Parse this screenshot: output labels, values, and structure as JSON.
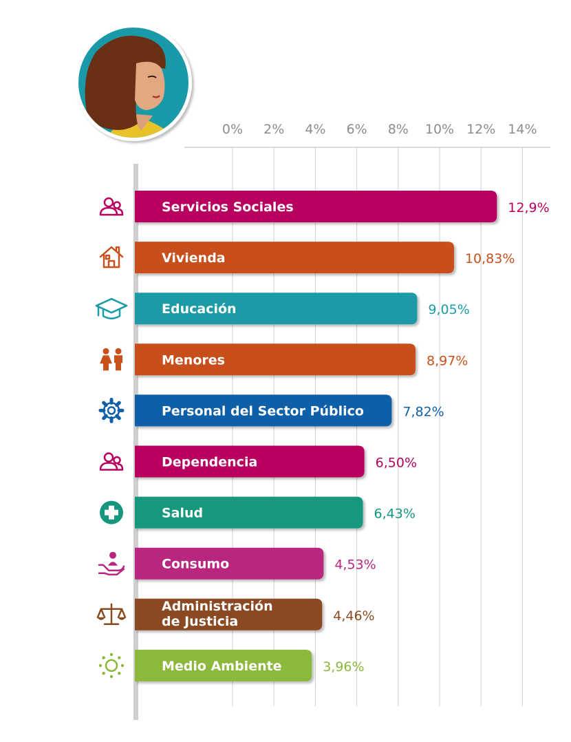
{
  "chart_data": {
    "type": "bar",
    "orientation": "horizontal",
    "xlim": [
      0,
      14
    ],
    "x_ticks": [
      0,
      2,
      4,
      6,
      8,
      10,
      12,
      14
    ],
    "x_tick_labels": [
      "0%",
      "2%",
      "4%",
      "6%",
      "8%",
      "10%",
      "12%",
      "14%"
    ],
    "grid": true,
    "categories": [
      [
        "Servicios Sociales"
      ],
      [
        "Vivienda"
      ],
      [
        "Educación"
      ],
      [
        "Menores"
      ],
      [
        "Personal del Sector Público"
      ],
      [
        "Dependencia"
      ],
      [
        "Salud"
      ],
      [
        "Consumo"
      ],
      [
        "Administración",
        "de Justicia"
      ],
      [
        "Medio Ambiente"
      ]
    ],
    "values": [
      12.9,
      10.83,
      9.05,
      8.97,
      7.82,
      6.5,
      6.43,
      4.53,
      4.46,
      3.96
    ],
    "value_labels": [
      "12,9%",
      "10,83%",
      "9,05%",
      "8,97%",
      "7,82%",
      "6,50%",
      "6,43%",
      "4,53%",
      "4,46%",
      "3,96%"
    ],
    "colors": [
      "#b8005e",
      "#c8501c",
      "#1b9ba6",
      "#c8501c",
      "#0e5ea8",
      "#b8005e",
      "#14977e",
      "#b9267f",
      "#8a4a20",
      "#8cb83a"
    ],
    "icons": [
      "people-icon",
      "house-icon",
      "graduation-cap-icon",
      "children-icon",
      "gear-icon",
      "people-icon",
      "medical-cross-icon",
      "hand-person-icon",
      "scales-icon",
      "sun-icon"
    ]
  },
  "avatar": {
    "name": "woman-avatar",
    "bg_color": "#1a9aa8",
    "hair_color": "#6a3015"
  }
}
